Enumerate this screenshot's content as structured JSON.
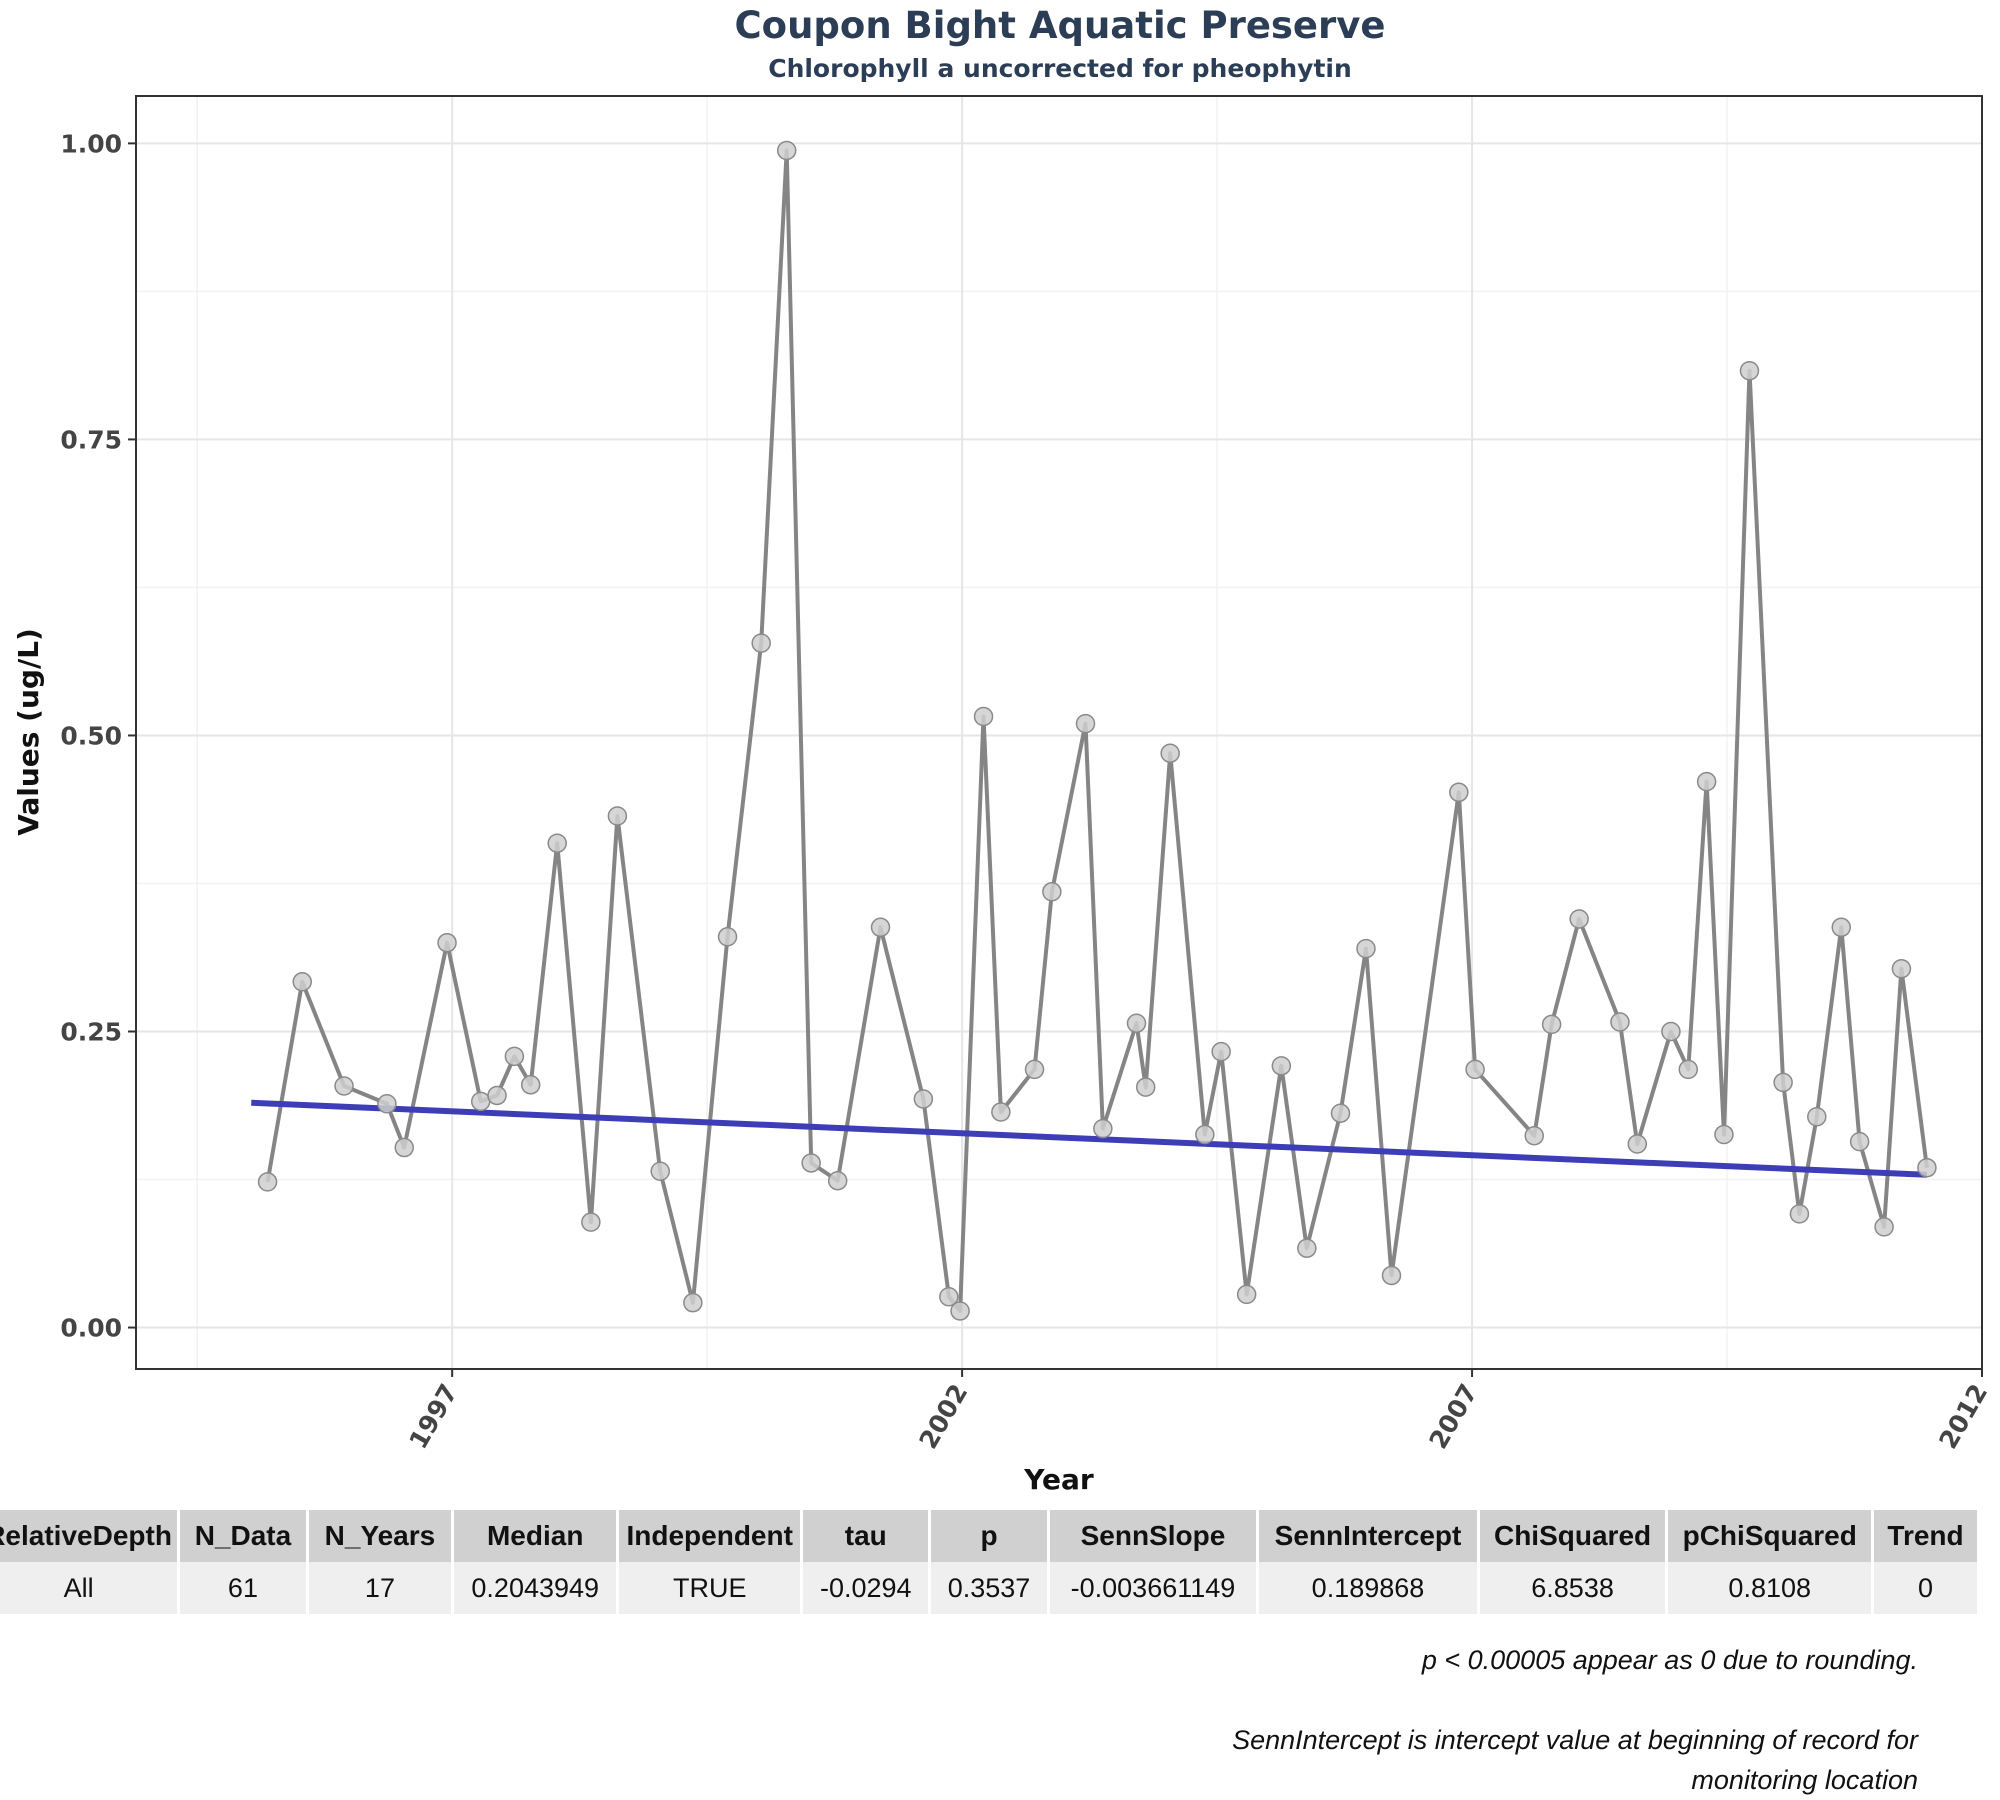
{
  "chart_data": {
    "type": "line",
    "title": "Coupon Bight Aquatic Preserve",
    "subtitle": "Chlorophyll a uncorrected for pheophytin",
    "xlabel": "Year",
    "ylabel": "Values (ug/L)",
    "xlim": [
      1993.9,
      2012.0
    ],
    "ylim": [
      -0.035,
      1.04
    ],
    "x_ticks": [
      1997,
      2002,
      2007,
      2012
    ],
    "y_ticks": [
      0.0,
      0.25,
      0.5,
      0.75,
      1.0
    ],
    "y_tick_labels": [
      "0.00",
      "0.25",
      "0.50",
      "0.75",
      "1.00"
    ],
    "grid": true,
    "legend": "none",
    "colors": {
      "series_line": "#858585",
      "point_fill": "#cfcfcf",
      "point_stroke": "#8a8a8a",
      "trend_line": "#3d3db8"
    },
    "series": [
      {
        "x": [
          1995.19,
          1995.53,
          1995.94,
          1996.36,
          1996.53,
          1996.95,
          1997.28,
          1997.44,
          1997.61,
          1997.77,
          1998.03,
          1998.36,
          1998.62,
          1999.04,
          1999.36,
          1999.7,
          2000.03,
          2000.28,
          2000.52,
          2000.78,
          2001.2,
          2001.62,
          2001.87,
          2001.98,
          2002.21,
          2002.38,
          2002.71,
          2002.88,
          2003.21,
          2003.38,
          2003.71,
          2003.8,
          2004.04,
          2004.38,
          2004.54,
          2004.79,
          2005.13,
          2005.38,
          2005.71,
          2005.96,
          2006.21,
          2006.87,
          2007.03,
          2007.61,
          2007.78,
          2008.05,
          2008.45,
          2008.62,
          2008.95,
          2009.12,
          2009.3,
          2009.47,
          2009.72,
          2010.05,
          2010.21,
          2010.38,
          2010.62,
          2010.8,
          2011.04,
          2011.21,
          2011.46
        ],
        "y": [
          0.123,
          0.292,
          0.204,
          0.189,
          0.152,
          0.325,
          0.191,
          0.196,
          0.229,
          0.205,
          0.409,
          0.089,
          0.432,
          0.132,
          0.021,
          0.33,
          0.578,
          0.994,
          0.139,
          0.124,
          0.338,
          0.193,
          0.026,
          0.014,
          0.516,
          0.182,
          0.218,
          0.368,
          0.51,
          0.168,
          0.257,
          0.203,
          0.485,
          0.163,
          0.233,
          0.028,
          0.221,
          0.067,
          0.181,
          0.32,
          0.044,
          0.452,
          0.218,
          0.162,
          0.256,
          0.345,
          0.258,
          0.155,
          0.25,
          0.218,
          0.461,
          0.163,
          0.808,
          0.207,
          0.096,
          0.178,
          0.338,
          0.157,
          0.085,
          0.303,
          0.135
        ]
      }
    ],
    "trend": {
      "x": [
        1995.03,
        2011.46
      ],
      "y": [
        0.189868,
        0.129
      ]
    }
  },
  "table": {
    "headers": [
      "RelativeDepth",
      "N_Data",
      "N_Years",
      "Median",
      "Independent",
      "tau",
      "p",
      "SennSlope",
      "SennIntercept",
      "ChiSquared",
      "pChiSquared",
      "Trend"
    ],
    "row": [
      "All",
      "61",
      "17",
      "0.2043949",
      "TRUE",
      "-0.0294",
      "0.3537",
      "-0.003661149",
      "0.189868",
      "6.8538",
      "0.8108",
      "0"
    ]
  },
  "footnotes": {
    "rounding": "p < 0.00005 appear as 0 due to rounding.",
    "intercept": "SennIntercept is intercept value at beginning of record for monitoring location"
  }
}
